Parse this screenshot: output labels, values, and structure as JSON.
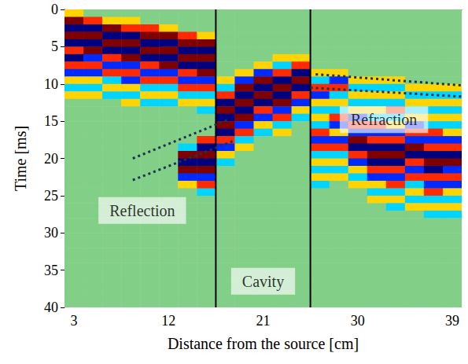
{
  "chart_data": {
    "type": "heatmap",
    "x_label": "Distance from the source [cm]",
    "y_label": "Time [ms]",
    "xlim": [
      2.1,
      39.9
    ],
    "xticks": [
      3,
      12,
      21,
      30,
      39
    ],
    "ylim": [
      0,
      40
    ],
    "yticks": [
      0,
      5,
      10,
      15,
      20,
      25,
      30,
      35,
      40
    ],
    "zlim": [
      -3,
      3
    ],
    "x": [
      3,
      4.8,
      6.6,
      8.4,
      10.2,
      12,
      13.8,
      15.6,
      17.4,
      19.2,
      21,
      22.8,
      24.6,
      26.4,
      28.2,
      30,
      31.8,
      33.6,
      35.4,
      37.2,
      39
    ],
    "y": [
      0.5,
      1.5,
      2.5,
      3.5,
      4.5,
      5.5,
      6.5,
      7.5,
      8.5,
      9.5,
      10.5,
      11.5,
      12.5,
      13.5,
      14.5,
      15.5,
      16.5,
      17.5,
      18.5,
      19.5,
      20.5,
      21.5,
      22.5,
      23.5,
      24.5,
      25.5,
      26.5,
      27.5,
      28.5,
      29.5,
      30.5,
      31.5,
      32.5,
      33.5,
      34.5,
      35.5,
      36.5,
      37.5,
      38.5,
      39.5
    ],
    "cells": [
      [
        1,
        3,
        -3,
        3,
        -3,
        2,
        -3,
        2,
        -2,
        1,
        -1,
        1,
        0,
        0,
        0,
        0,
        0,
        0,
        0,
        0,
        0,
        0,
        0,
        0,
        0,
        0,
        0,
        0,
        0,
        0,
        0,
        0,
        0,
        0,
        0,
        0,
        0,
        0,
        0,
        0
      ],
      [
        0,
        2,
        -3,
        3,
        -3,
        3,
        -2,
        2,
        -2,
        1,
        -1,
        1,
        0,
        0,
        0,
        0,
        0,
        0,
        0,
        0,
        0,
        0,
        0,
        0,
        0,
        0,
        0,
        0,
        0,
        0,
        0,
        0,
        0,
        0,
        0,
        0,
        0,
        0,
        0,
        0
      ],
      [
        0,
        1,
        3,
        -3,
        3,
        -3,
        2,
        -2,
        2,
        -1,
        1,
        -1,
        0,
        0,
        0,
        0,
        0,
        0,
        0,
        0,
        0,
        0,
        0,
        0,
        0,
        0,
        0,
        0,
        0,
        0,
        0,
        0,
        0,
        0,
        0,
        0,
        0,
        0,
        0,
        0
      ],
      [
        0,
        1,
        2,
        -3,
        3,
        -3,
        3,
        -2,
        2,
        -2,
        1,
        -1,
        1,
        0,
        0,
        0,
        0,
        0,
        0,
        0,
        0,
        0,
        0,
        0,
        0,
        0,
        0,
        0,
        0,
        0,
        0,
        0,
        0,
        0,
        0,
        0,
        0,
        0,
        0,
        0
      ],
      [
        0,
        0,
        2,
        3,
        -3,
        3,
        -3,
        2,
        -2,
        2,
        -1,
        1,
        -1,
        0,
        0,
        0,
        0,
        0,
        0,
        0,
        0,
        0,
        0,
        0,
        0,
        0,
        0,
        0,
        0,
        0,
        0,
        0,
        0,
        0,
        0,
        0,
        0,
        0,
        0,
        0
      ],
      [
        0,
        0,
        1,
        3,
        -3,
        3,
        -3,
        3,
        -2,
        2,
        -1,
        1,
        -1,
        0,
        0,
        0,
        0,
        0,
        0,
        0,
        0,
        0,
        0,
        0,
        0,
        0,
        0,
        0,
        0,
        0,
        0,
        0,
        0,
        0,
        0,
        0,
        0,
        0,
        0,
        0
      ],
      [
        0,
        0,
        0,
        2,
        3,
        -3,
        3,
        -3,
        2,
        -2,
        2,
        -1,
        1,
        0,
        0,
        0,
        0,
        0,
        -1,
        3,
        -3,
        3,
        -2,
        1,
        0,
        0,
        0,
        0,
        0,
        0,
        0,
        0,
        0,
        0,
        0,
        0,
        0,
        0,
        0,
        0
      ],
      [
        0,
        0,
        0,
        1,
        3,
        -3,
        3,
        -3,
        3,
        -2,
        2,
        -1,
        1,
        -1,
        0,
        0,
        0,
        2,
        -3,
        3,
        -3,
        3,
        -2,
        2,
        -1,
        0,
        0,
        0,
        0,
        0,
        0,
        0,
        0,
        0,
        0,
        0,
        0,
        0,
        0,
        0
      ],
      [
        0,
        0,
        0,
        0,
        0,
        0,
        0,
        0,
        0,
        1,
        -1,
        2,
        -3,
        3,
        -3,
        3,
        -3,
        2,
        -2,
        1,
        -1,
        0,
        0,
        0,
        0,
        0,
        0,
        0,
        0,
        0,
        0,
        0,
        0,
        0,
        0,
        0,
        0,
        0,
        0,
        0
      ],
      [
        0,
        0,
        0,
        0,
        0,
        0,
        0,
        0,
        1,
        -2,
        3,
        -3,
        3,
        -3,
        3,
        -2,
        2,
        -1,
        1,
        0,
        0,
        0,
        0,
        0,
        0,
        0,
        0,
        0,
        0,
        0,
        0,
        0,
        0,
        0,
        0,
        0,
        0,
        0,
        0,
        0
      ],
      [
        0,
        0,
        0,
        0,
        0,
        0,
        0,
        1,
        -2,
        3,
        -3,
        3,
        -3,
        2,
        -2,
        1,
        -1,
        0,
        0,
        0,
        0,
        0,
        0,
        0,
        0,
        0,
        0,
        0,
        0,
        0,
        0,
        0,
        0,
        0,
        0,
        0,
        0,
        0,
        0,
        0
      ],
      [
        0,
        0,
        0,
        0,
        0,
        0,
        1,
        -1,
        2,
        -3,
        3,
        -3,
        3,
        -2,
        2,
        -1,
        1,
        0,
        0,
        0,
        0,
        0,
        0,
        0,
        0,
        0,
        0,
        0,
        0,
        0,
        0,
        0,
        0,
        0,
        0,
        0,
        0,
        0,
        0,
        0
      ],
      [
        0,
        0,
        0,
        0,
        0,
        0,
        1,
        2,
        -3,
        3,
        -3,
        2,
        -2,
        1,
        -1,
        0,
        0,
        0,
        0,
        0,
        0,
        0,
        0,
        0,
        0,
        0,
        0,
        0,
        0,
        0,
        0,
        0,
        0,
        0,
        0,
        0,
        0,
        0,
        0,
        0
      ],
      [
        0,
        0,
        0,
        0,
        0,
        0,
        0,
        0,
        1,
        -1,
        2,
        -2,
        1,
        -1,
        1,
        -1,
        2,
        -2,
        2,
        -1,
        1,
        -1,
        1,
        -1,
        0,
        0,
        0,
        0,
        0,
        0,
        0,
        0,
        0,
        0,
        0,
        0,
        0,
        0,
        0,
        0
      ],
      [
        0,
        0,
        0,
        0,
        0,
        0,
        0,
        0,
        1,
        -2,
        2,
        -1,
        1,
        -1,
        2,
        -2,
        1,
        -2,
        2,
        -1,
        1,
        -1,
        1,
        0,
        0,
        0,
        0,
        0,
        0,
        0,
        0,
        0,
        0,
        0,
        0,
        0,
        0,
        0,
        0,
        0
      ],
      [
        0,
        0,
        0,
        0,
        0,
        0,
        0,
        0,
        0,
        1,
        -1,
        1,
        -1,
        1,
        -2,
        2,
        -2,
        3,
        -3,
        2,
        -2,
        1,
        -1,
        1,
        0,
        0,
        0,
        0,
        0,
        0,
        0,
        0,
        0,
        0,
        0,
        0,
        0,
        0,
        0,
        0
      ],
      [
        0,
        0,
        0,
        0,
        0,
        0,
        0,
        0,
        0,
        1,
        -1,
        1,
        -1,
        1,
        -1,
        2,
        -2,
        2,
        -3,
        3,
        -3,
        2,
        -2,
        1,
        -1,
        1,
        0,
        0,
        0,
        0,
        0,
        0,
        0,
        0,
        0,
        0,
        0,
        0,
        0,
        0
      ],
      [
        0,
        0,
        0,
        0,
        0,
        0,
        0,
        0,
        0,
        1,
        -1,
        1,
        -1,
        2,
        -1,
        1,
        -2,
        2,
        -3,
        3,
        -3,
        2,
        -2,
        2,
        -1,
        1,
        -1,
        0,
        0,
        0,
        0,
        0,
        0,
        0,
        0,
        0,
        0,
        0,
        0,
        0
      ],
      [
        0,
        0,
        0,
        0,
        0,
        0,
        0,
        0,
        0,
        0,
        1,
        -1,
        1,
        -1,
        1,
        -2,
        2,
        -2,
        3,
        -3,
        2,
        -2,
        2,
        -1,
        1,
        -1,
        1,
        0,
        0,
        0,
        0,
        0,
        0,
        0,
        0,
        0,
        0,
        0,
        0,
        0
      ],
      [
        0,
        0,
        0,
        0,
        0,
        0,
        0,
        0,
        0,
        0,
        1,
        -1,
        1,
        -1,
        1,
        -1,
        2,
        -2,
        2,
        -3,
        3,
        -3,
        2,
        -2,
        2,
        -1,
        1,
        -1,
        0,
        0,
        0,
        0,
        0,
        0,
        0,
        0,
        0,
        0,
        0,
        0
      ],
      [
        0,
        0,
        0,
        0,
        0,
        0,
        0,
        0,
        0,
        0,
        1,
        -1,
        1,
        -1,
        1,
        -1,
        1,
        -2,
        2,
        -3,
        3,
        -2,
        2,
        -2,
        1,
        -1,
        1,
        -1,
        0,
        0,
        0,
        0,
        0,
        0,
        0,
        0,
        0,
        0,
        0,
        0
      ]
    ],
    "cavity_bounds": [
      16.5,
      25.5
    ],
    "reflection_lines": [
      [
        [
          8.6,
          20
        ],
        [
          17.7,
          14.8
        ]
      ],
      [
        [
          8.6,
          22.9
        ],
        [
          18.1,
          17.7
        ]
      ]
    ],
    "refraction_lines": [
      [
        [
          26,
          8.7
        ],
        [
          39.9,
          10.2
        ]
      ],
      [
        [
          25.5,
          10.5
        ],
        [
          39.9,
          11.7
        ]
      ]
    ],
    "annotations": [
      {
        "text": "Reflection",
        "x": 9.5,
        "y": 27
      },
      {
        "text": "Cavity",
        "x": 21,
        "y": 36.5
      },
      {
        "text": "Refraction",
        "x": 32.5,
        "y": 14.8
      }
    ]
  }
}
